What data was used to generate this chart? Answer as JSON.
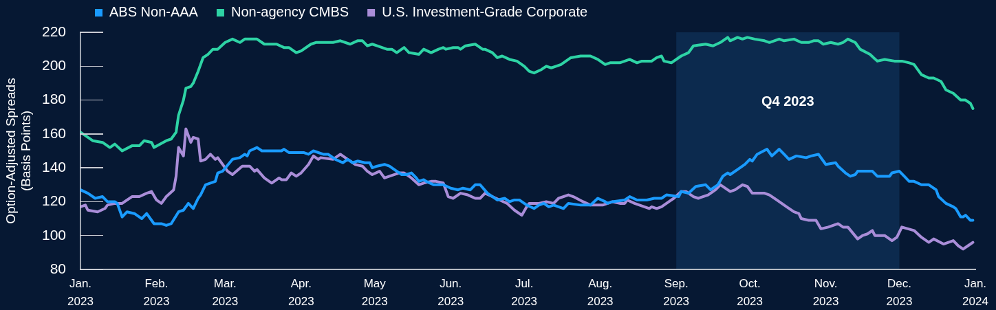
{
  "chart_data": {
    "type": "line",
    "ylabel": "Option-Adjusted Spreads\n(Basis Points)",
    "xlim": [
      "2023-01-01",
      "2024-01-01"
    ],
    "xticks": [
      {
        "value": "2023-01-01",
        "label": "Jan. 2023"
      },
      {
        "value": "2023-02-01",
        "label": "Feb. 2023"
      },
      {
        "value": "2023-03-01",
        "label": "Mar. 2023"
      },
      {
        "value": "2023-04-01",
        "label": "Apr. 2023"
      },
      {
        "value": "2023-05-01",
        "label": "May 2023"
      },
      {
        "value": "2023-06-01",
        "label": "Jun. 2023"
      },
      {
        "value": "2023-07-01",
        "label": "Jul. 2023"
      },
      {
        "value": "2023-08-01",
        "label": "Aug. 2023"
      },
      {
        "value": "2023-09-01",
        "label": "Sep. 2023"
      },
      {
        "value": "2023-10-01",
        "label": "Oct. 2023"
      },
      {
        "value": "2023-11-01",
        "label": "Nov. 2023"
      },
      {
        "value": "2023-12-01",
        "label": "Dec. 2023"
      },
      {
        "value": "2024-01-01",
        "label": "Jan. 2024"
      }
    ],
    "ylim": [
      80,
      220
    ],
    "yticks": [
      80,
      100,
      120,
      140,
      160,
      180,
      200,
      220
    ],
    "grid": false,
    "legend": "top left",
    "marker": "none",
    "line_style": "solid",
    "bands": [
      {
        "axis": "x",
        "from": "2023-09-01",
        "to": "2023-12-01",
        "label": "Q4 2023",
        "color": "#0c2a4e"
      }
    ],
    "series": [
      {
        "name": "ABS Non-AAA",
        "color": "#1a9bff",
        "x": [
          "2023-01-01",
          "2023-01-04",
          "2023-01-07",
          "2023-01-10",
          "2023-01-12",
          "2023-01-15",
          "2023-01-16",
          "2023-01-18",
          "2023-01-20",
          "2023-01-23",
          "2023-01-26",
          "2023-01-28",
          "2023-01-31",
          "2023-02-03",
          "2023-02-05",
          "2023-02-07",
          "2023-02-10",
          "2023-02-12",
          "2023-02-14",
          "2023-02-16",
          "2023-02-18",
          "2023-02-19",
          "2023-02-21",
          "2023-02-25",
          "2023-02-26",
          "2023-02-28",
          "2023-03-04",
          "2023-03-07",
          "2023-03-09",
          "2023-03-10",
          "2023-03-11",
          "2023-03-14",
          "2023-03-16",
          "2023-03-21",
          "2023-03-24",
          "2023-03-25",
          "2023-03-27",
          "2023-03-30",
          "2023-04-02",
          "2023-04-04",
          "2023-04-06",
          "2023-04-10",
          "2023-04-12",
          "2023-04-15",
          "2023-04-18",
          "2023-04-20",
          "2023-04-22",
          "2023-04-24",
          "2023-04-27",
          "2023-04-29",
          "2023-04-30",
          "2023-05-02",
          "2023-05-05",
          "2023-05-07",
          "2023-05-10",
          "2023-05-12",
          "2023-05-14",
          "2023-05-16",
          "2023-05-18",
          "2023-05-19",
          "2023-05-21",
          "2023-05-22",
          "2023-05-25",
          "2023-05-27",
          "2023-05-29",
          "2023-06-01",
          "2023-06-04",
          "2023-06-06",
          "2023-06-09",
          "2023-06-11",
          "2023-06-13",
          "2023-06-16",
          "2023-06-20",
          "2023-06-23",
          "2023-06-25",
          "2023-06-27",
          "2023-06-29",
          "2023-07-02",
          "2023-07-05",
          "2023-07-07",
          "2023-07-09",
          "2023-07-11",
          "2023-07-13",
          "2023-07-17",
          "2023-07-19",
          "2023-07-24",
          "2023-07-28",
          "2023-07-31",
          "2023-08-03",
          "2023-08-04",
          "2023-08-06",
          "2023-08-11",
          "2023-08-13",
          "2023-08-16",
          "2023-08-20",
          "2023-08-23",
          "2023-08-26",
          "2023-08-28",
          "2023-09-02",
          "2023-09-03",
          "2023-09-06",
          "2023-09-09",
          "2023-09-13",
          "2023-09-15",
          "2023-09-18",
          "2023-09-20",
          "2023-09-22",
          "2023-09-23",
          "2023-09-26",
          "2023-09-29",
          "2023-10-01",
          "2023-10-02",
          "2023-10-04",
          "2023-10-08",
          "2023-10-10",
          "2023-10-13",
          "2023-10-15",
          "2023-10-17",
          "2023-10-20",
          "2023-10-24",
          "2023-10-26",
          "2023-10-29",
          "2023-11-01",
          "2023-11-05",
          "2023-11-06",
          "2023-11-09",
          "2023-11-11",
          "2023-11-13",
          "2023-11-14",
          "2023-11-20",
          "2023-11-22",
          "2023-11-27",
          "2023-11-28",
          "2023-12-01",
          "2023-12-03",
          "2023-12-05",
          "2023-12-07",
          "2023-12-10",
          "2023-12-13",
          "2023-12-16",
          "2023-12-17",
          "2023-12-20",
          "2023-12-23",
          "2023-12-24",
          "2023-12-26",
          "2023-12-27",
          "2023-12-28",
          "2023-12-30",
          "2023-12-31"
        ],
        "values": [
          127,
          125,
          122,
          123,
          120,
          120,
          119,
          111,
          114,
          113,
          110,
          113,
          107,
          107,
          106,
          107,
          114,
          115,
          119,
          116,
          122,
          124,
          130,
          132,
          137,
          138,
          145,
          146,
          148,
          147,
          150,
          152,
          150,
          150,
          150,
          151,
          149,
          149,
          149,
          148,
          150,
          148,
          148,
          145,
          143,
          145,
          143,
          144,
          143,
          143,
          140,
          141,
          142,
          141,
          138,
          136,
          136,
          137,
          134,
          132,
          133,
          132,
          130,
          130,
          130,
          128,
          127,
          128,
          127,
          130,
          130,
          125,
          121,
          122,
          120,
          121,
          121,
          118,
          116,
          118,
          119,
          117,
          118,
          116,
          119,
          118,
          118,
          122,
          120,
          119,
          120,
          121,
          123,
          121,
          121,
          122,
          122,
          124,
          123,
          126,
          125,
          129,
          130,
          127,
          130,
          135,
          137,
          136,
          139,
          142,
          145,
          144,
          148,
          151,
          147,
          151,
          148,
          145,
          147,
          146,
          147,
          148,
          142,
          143,
          141,
          137,
          135,
          136,
          138,
          138,
          135,
          135,
          137,
          138,
          135,
          132,
          132,
          130,
          130,
          127,
          123,
          119,
          117,
          116,
          111,
          111,
          112,
          109,
          109
        ]
      },
      {
        "name": "Non-agency CMBS",
        "color": "#2ed3a5",
        "x": [
          "2023-01-01",
          "2023-01-06",
          "2023-01-10",
          "2023-01-13",
          "2023-01-15",
          "2023-01-18",
          "2023-01-22",
          "2023-01-25",
          "2023-01-27",
          "2023-01-30",
          "2023-01-31",
          "2023-02-05",
          "2023-02-07",
          "2023-02-09",
          "2023-02-10",
          "2023-02-12",
          "2023-02-13",
          "2023-02-15",
          "2023-02-16",
          "2023-02-18",
          "2023-02-20",
          "2023-02-22",
          "2023-02-24",
          "2023-02-26",
          "2023-03-01",
          "2023-03-04",
          "2023-03-07",
          "2023-03-09",
          "2023-03-11",
          "2023-03-14",
          "2023-03-17",
          "2023-03-22",
          "2023-03-25",
          "2023-03-27",
          "2023-03-30",
          "2023-04-01",
          "2023-04-05",
          "2023-04-07",
          "2023-04-14",
          "2023-04-17",
          "2023-04-21",
          "2023-04-24",
          "2023-04-26",
          "2023-04-28",
          "2023-04-30",
          "2023-05-02",
          "2023-05-06",
          "2023-05-08",
          "2023-05-10",
          "2023-05-13",
          "2023-05-15",
          "2023-05-19",
          "2023-05-21",
          "2023-05-24",
          "2023-05-27",
          "2023-05-29",
          "2023-05-30",
          "2023-06-02",
          "2023-06-04",
          "2023-06-05",
          "2023-06-07",
          "2023-06-11",
          "2023-06-12",
          "2023-06-14",
          "2023-06-15",
          "2023-06-18",
          "2023-06-20",
          "2023-06-22",
          "2023-06-25",
          "2023-06-28",
          "2023-07-01",
          "2023-07-03",
          "2023-07-05",
          "2023-07-08",
          "2023-07-10",
          "2023-07-12",
          "2023-07-14",
          "2023-07-16",
          "2023-07-20",
          "2023-07-24",
          "2023-07-26",
          "2023-07-28",
          "2023-07-31",
          "2023-08-03",
          "2023-08-05",
          "2023-08-09",
          "2023-08-13",
          "2023-08-16",
          "2023-08-18",
          "2023-08-22",
          "2023-08-24",
          "2023-08-26",
          "2023-08-27",
          "2023-08-30",
          "2023-09-03",
          "2023-09-06",
          "2023-09-08",
          "2023-09-13",
          "2023-09-16",
          "2023-09-19",
          "2023-09-22",
          "2023-09-23",
          "2023-09-26",
          "2023-09-28",
          "2023-09-30",
          "2023-10-03",
          "2023-10-07",
          "2023-10-09",
          "2023-10-11",
          "2023-10-13",
          "2023-10-15",
          "2023-10-19",
          "2023-10-22",
          "2023-10-25",
          "2023-10-27",
          "2023-10-29",
          "2023-10-31",
          "2023-11-03",
          "2023-11-06",
          "2023-11-08",
          "2023-11-10",
          "2023-11-13",
          "2023-11-15",
          "2023-11-19",
          "2023-11-22",
          "2023-11-25",
          "2023-11-29",
          "2023-12-02",
          "2023-12-05",
          "2023-12-07",
          "2023-12-10",
          "2023-12-13",
          "2023-12-15",
          "2023-12-18",
          "2023-12-20",
          "2023-12-23",
          "2023-12-26",
          "2023-12-28",
          "2023-12-30",
          "2023-12-31"
        ],
        "values": [
          161,
          156,
          155,
          152,
          154,
          150,
          153,
          153,
          156,
          155,
          152,
          156,
          157,
          161,
          171,
          180,
          187,
          188,
          190,
          197,
          205,
          207,
          210,
          210,
          214,
          216,
          214,
          216,
          216,
          216,
          213,
          213,
          211,
          211,
          208,
          209,
          213,
          214,
          214,
          215,
          213,
          215,
          215,
          212,
          213,
          212,
          210,
          210,
          208,
          211,
          208,
          207,
          210,
          208,
          210,
          211,
          210,
          211,
          211,
          210,
          212,
          213,
          212,
          210,
          210,
          208,
          205,
          206,
          204,
          203,
          200,
          197,
          196,
          198,
          200,
          199,
          200,
          201,
          205,
          206,
          206,
          206,
          204,
          201,
          202,
          202,
          204,
          202,
          203,
          203,
          205,
          206,
          203,
          202,
          206,
          208,
          212,
          213,
          212,
          214,
          217,
          215,
          217,
          216,
          217,
          216,
          215,
          214,
          215,
          216,
          215,
          216,
          214,
          214,
          215,
          215,
          213,
          214,
          213,
          214,
          216,
          214,
          210,
          207,
          203,
          204,
          203,
          203,
          202,
          201,
          195,
          193,
          193,
          191,
          186,
          184,
          180,
          180,
          178,
          175
        ]
      },
      {
        "name": "U.S. Investment-Grade Corporate",
        "color": "#a98dd8",
        "x": [
          "2023-01-01",
          "2023-01-03",
          "2023-01-04",
          "2023-01-08",
          "2023-01-11",
          "2023-01-12",
          "2023-01-15",
          "2023-01-18",
          "2023-01-19",
          "2023-01-22",
          "2023-01-25",
          "2023-01-28",
          "2023-01-30",
          "2023-02-01",
          "2023-02-03",
          "2023-02-05",
          "2023-02-08",
          "2023-02-09",
          "2023-02-10",
          "2023-02-12",
          "2023-02-13",
          "2023-02-15",
          "2023-02-16",
          "2023-02-18",
          "2023-02-19",
          "2023-02-21",
          "2023-02-23",
          "2023-02-25",
          "2023-02-26",
          "2023-03-02",
          "2023-03-04",
          "2023-03-08",
          "2023-03-11",
          "2023-03-13",
          "2023-03-14",
          "2023-03-17",
          "2023-03-20",
          "2023-03-23",
          "2023-03-24",
          "2023-03-26",
          "2023-03-28",
          "2023-03-30",
          "2023-04-01",
          "2023-04-04",
          "2023-04-06",
          "2023-04-08",
          "2023-04-09",
          "2023-04-14",
          "2023-04-17",
          "2023-04-20",
          "2023-04-23",
          "2023-04-26",
          "2023-04-28",
          "2023-04-30",
          "2023-05-03",
          "2023-05-05",
          "2023-05-07",
          "2023-05-11",
          "2023-05-13",
          "2023-05-16",
          "2023-05-19",
          "2023-05-21",
          "2023-05-24",
          "2023-05-26",
          "2023-05-29",
          "2023-05-31",
          "2023-06-02",
          "2023-06-05",
          "2023-06-08",
          "2023-06-11",
          "2023-06-13",
          "2023-06-15",
          "2023-06-18",
          "2023-06-21",
          "2023-06-24",
          "2023-06-27",
          "2023-06-30",
          "2023-07-02",
          "2023-07-03",
          "2023-07-07",
          "2023-07-10",
          "2023-07-13",
          "2023-07-15",
          "2023-07-19",
          "2023-07-21",
          "2023-07-25",
          "2023-07-28",
          "2023-08-02",
          "2023-08-06",
          "2023-08-09",
          "2023-08-11",
          "2023-08-12",
          "2023-08-15",
          "2023-08-17",
          "2023-08-21",
          "2023-08-22",
          "2023-08-24",
          "2023-08-26",
          "2023-08-29",
          "2023-08-31",
          "2023-09-03",
          "2023-09-05",
          "2023-09-08",
          "2023-09-10",
          "2023-09-14",
          "2023-09-17",
          "2023-09-19",
          "2023-09-23",
          "2023-09-25",
          "2023-09-28",
          "2023-09-30",
          "2023-10-02",
          "2023-10-07",
          "2023-10-09",
          "2023-10-12",
          "2023-10-16",
          "2023-10-19",
          "2023-10-21",
          "2023-10-22",
          "2023-10-25",
          "2023-10-28",
          "2023-10-30",
          "2023-11-02",
          "2023-11-06",
          "2023-11-08",
          "2023-11-10",
          "2023-11-14",
          "2023-11-16",
          "2023-11-18",
          "2023-11-20",
          "2023-11-21",
          "2023-11-25",
          "2023-11-28",
          "2023-11-30",
          "2023-12-02",
          "2023-12-07",
          "2023-12-10",
          "2023-12-13",
          "2023-12-15",
          "2023-12-19",
          "2023-12-23",
          "2023-12-25",
          "2023-12-27",
          "2023-12-29",
          "2023-12-31"
        ],
        "values": [
          117,
          118,
          115,
          114,
          116,
          118,
          119,
          119,
          120,
          123,
          123,
          125,
          126,
          121,
          119,
          123,
          127,
          135,
          152,
          147,
          163,
          155,
          158,
          157,
          144,
          145,
          148,
          145,
          146,
          138,
          136,
          141,
          141,
          138,
          139,
          134,
          131,
          134,
          133,
          133,
          137,
          135,
          137,
          142,
          147,
          145,
          146,
          145,
          148,
          145,
          142,
          141,
          138,
          136,
          138,
          134,
          135,
          137,
          137,
          134,
          130,
          131,
          132,
          132,
          131,
          123,
          122,
          125,
          124,
          122,
          122,
          125,
          123,
          121,
          119,
          115,
          112,
          117,
          119,
          119,
          120,
          119,
          122,
          124,
          123,
          120,
          118,
          118,
          120,
          119,
          119,
          121,
          119,
          118,
          116,
          117,
          116,
          117,
          120,
          122,
          126,
          126,
          123,
          122,
          124,
          127,
          130,
          126,
          127,
          130,
          129,
          125,
          125,
          124,
          121,
          117,
          114,
          113,
          110,
          109,
          109,
          104,
          105,
          107,
          105,
          105,
          98,
          100,
          101,
          103,
          100,
          100,
          97,
          99,
          105,
          103,
          99,
          96,
          98,
          95,
          97,
          94,
          92,
          94,
          96
        ]
      }
    ]
  }
}
